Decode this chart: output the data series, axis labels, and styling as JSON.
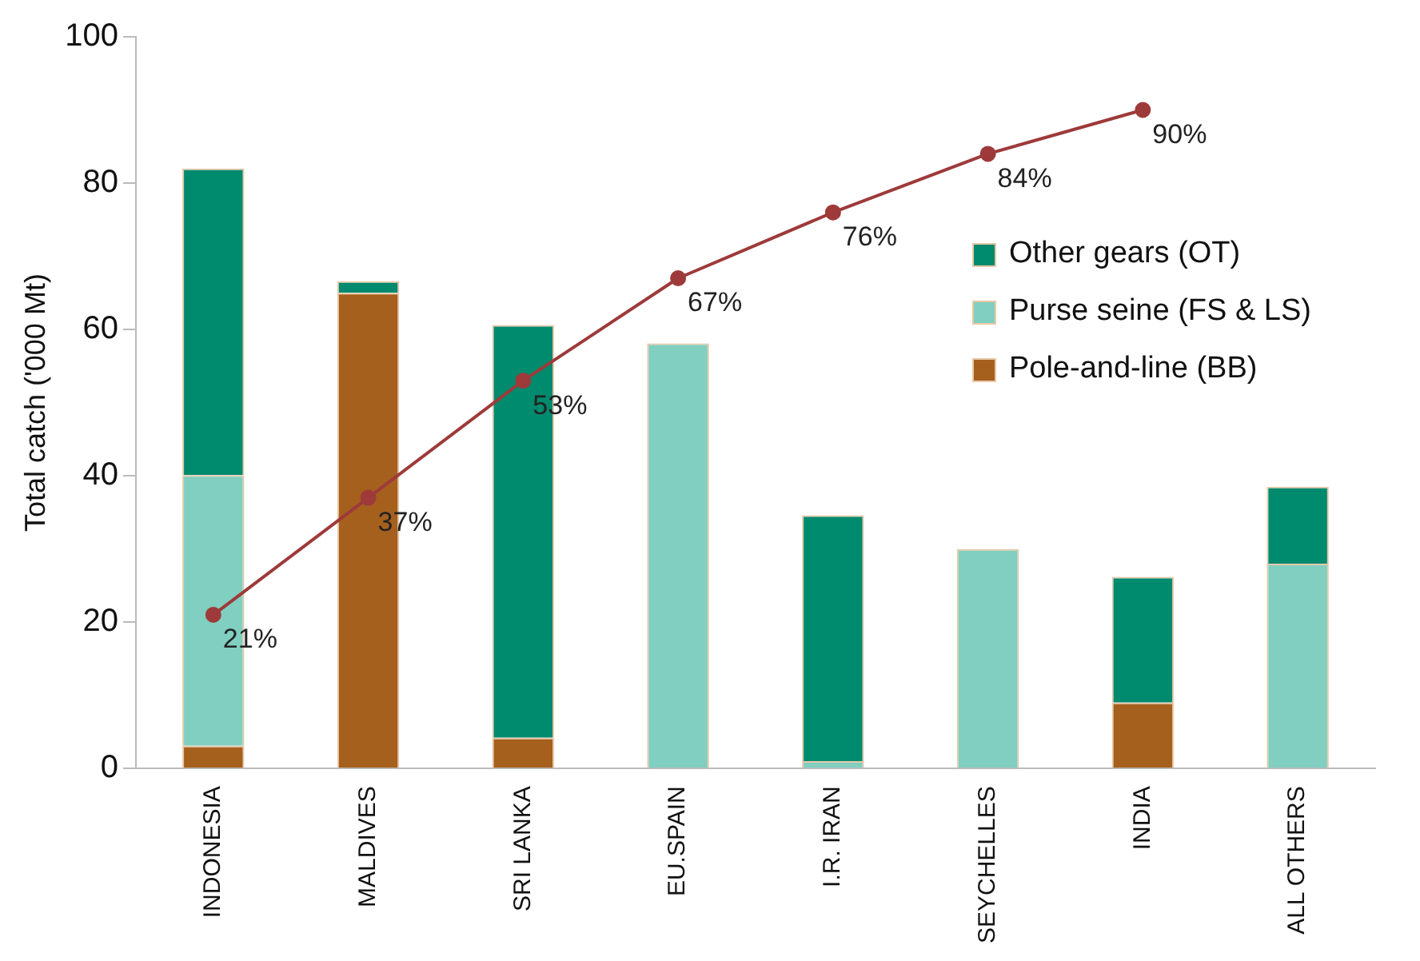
{
  "chart_data": {
    "type": "bar",
    "ylabel": "Total catch ('000 Mt)",
    "categories": [
      "INDONESIA",
      "MALDIVES",
      "SRI LANKA",
      "EU.SPAIN",
      "I.R. IRAN",
      "SEYCHELLES",
      "INDIA",
      "ALL OTHERS"
    ],
    "stacked": true,
    "series": [
      {
        "name": "Pole-and-line (BB)",
        "color": "#a5601e",
        "values": [
          3.1,
          65,
          4.2,
          0,
          0,
          0,
          9,
          0
        ]
      },
      {
        "name": "Purse seine (FS & LS)",
        "color": "#80cfc0",
        "values": [
          37,
          0,
          0,
          58.1,
          1,
          30,
          0,
          28
        ]
      },
      {
        "name": "Other gears (OT)",
        "color": "#008a6e",
        "values": [
          41.9,
          1.6,
          56.4,
          0,
          33.6,
          0,
          17.2,
          10.5
        ]
      },
      {
        "type": "line",
        "color": "#9e3a3a",
        "marker": "circle",
        "values": [
          21,
          37,
          53,
          67,
          76,
          84,
          90,
          null
        ],
        "value_labels": [
          "21%",
          "37%",
          "53%",
          "67%",
          "76%",
          "84%",
          "90%",
          null
        ]
      }
    ],
    "ylim": [
      0,
      100
    ],
    "yticks": [
      0,
      20,
      40,
      60,
      80,
      100
    ],
    "grid": false,
    "legend": "right"
  }
}
